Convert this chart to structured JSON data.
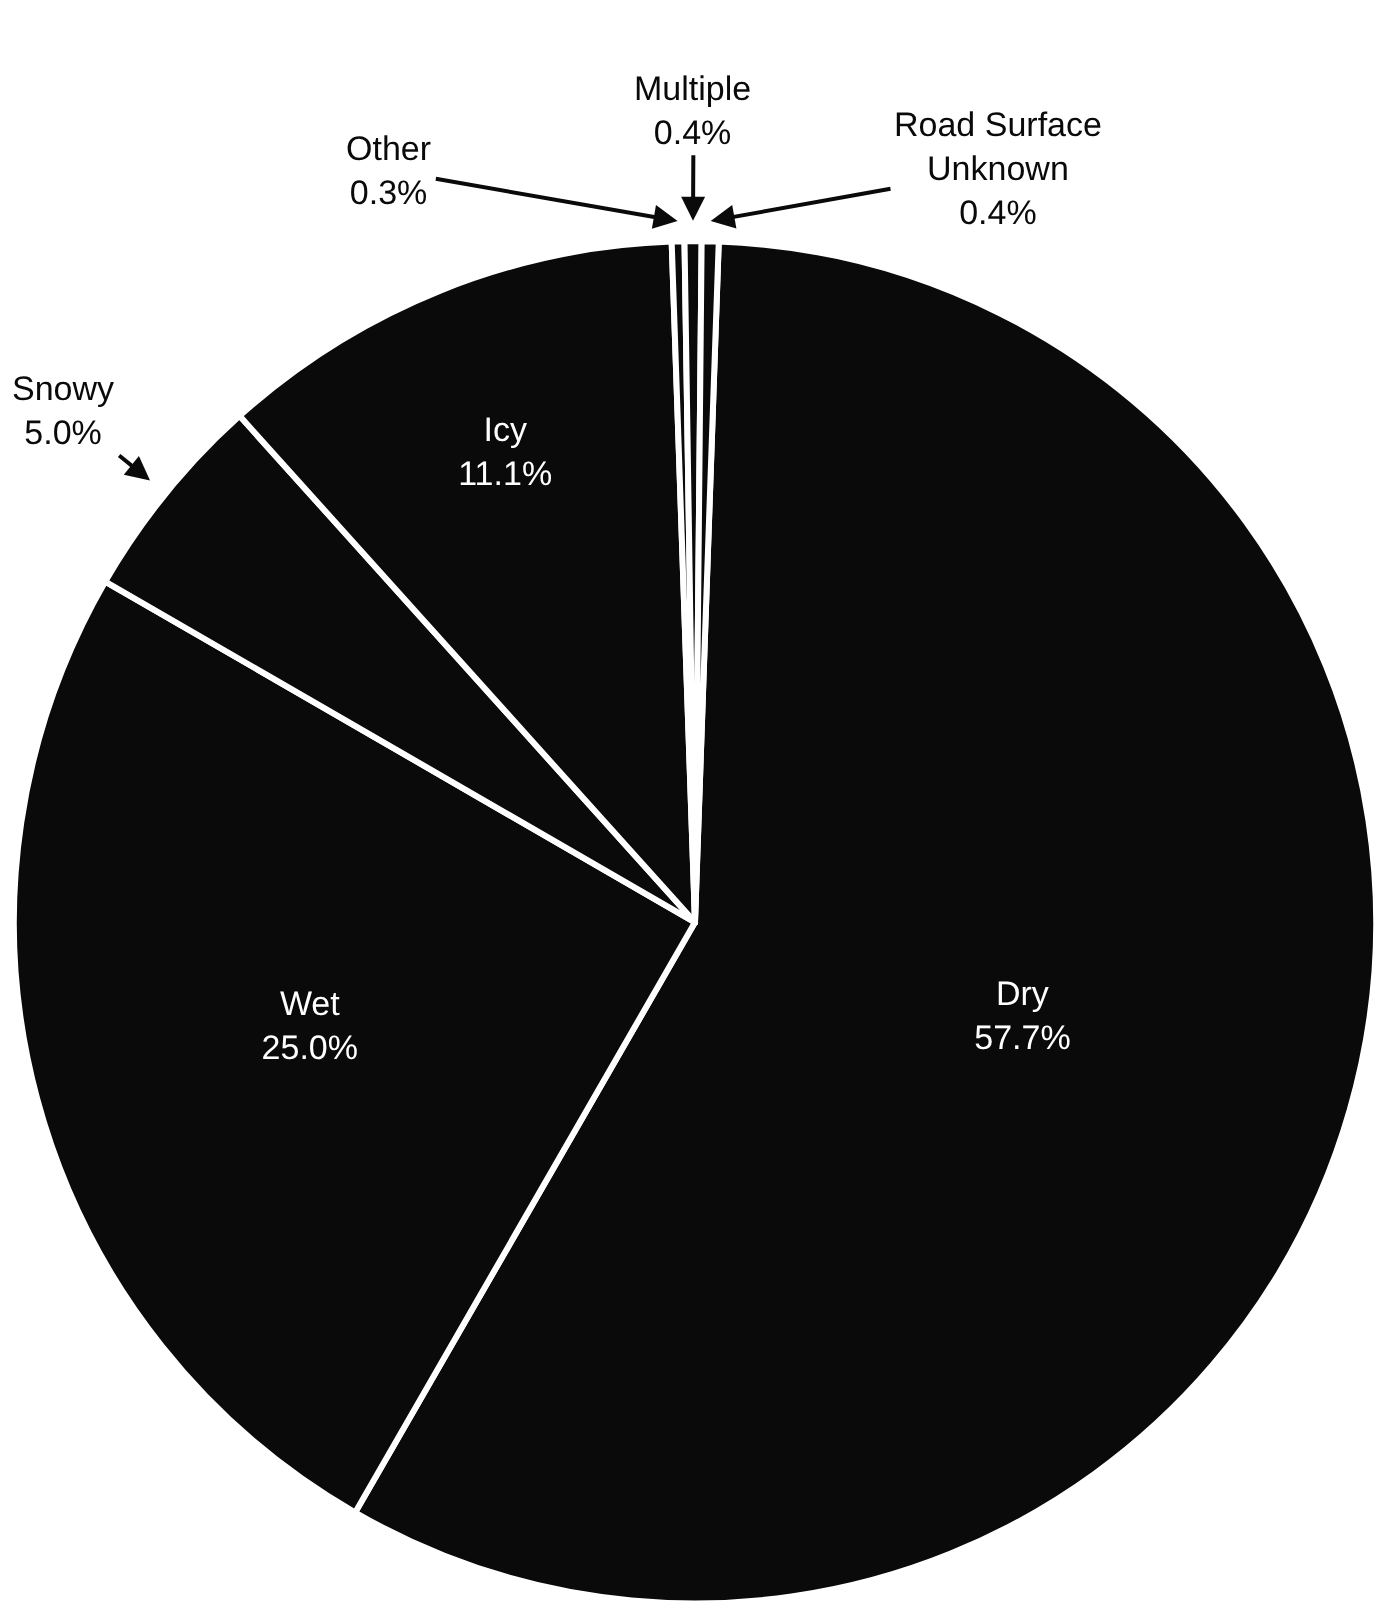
{
  "chart_data": {
    "type": "pie",
    "categories": [
      "Dry",
      "Wet",
      "Snowy",
      "Icy",
      "Other",
      "Multiple",
      "Road Surface Unknown"
    ],
    "values": [
      57.7,
      25.0,
      5.0,
      11.1,
      0.3,
      0.4,
      0.4
    ],
    "value_labels": [
      "57.7%",
      "25.0%",
      "5.0%",
      "11.1%",
      "0.3%",
      "0.4%",
      "0.4%"
    ],
    "colors": [
      "#0a0a0a",
      "#0a0a0a",
      "#0a0a0a",
      "#0a0a0a",
      "#0a0a0a",
      "#0a0a0a",
      "#0a0a0a"
    ],
    "legend": false
  }
}
